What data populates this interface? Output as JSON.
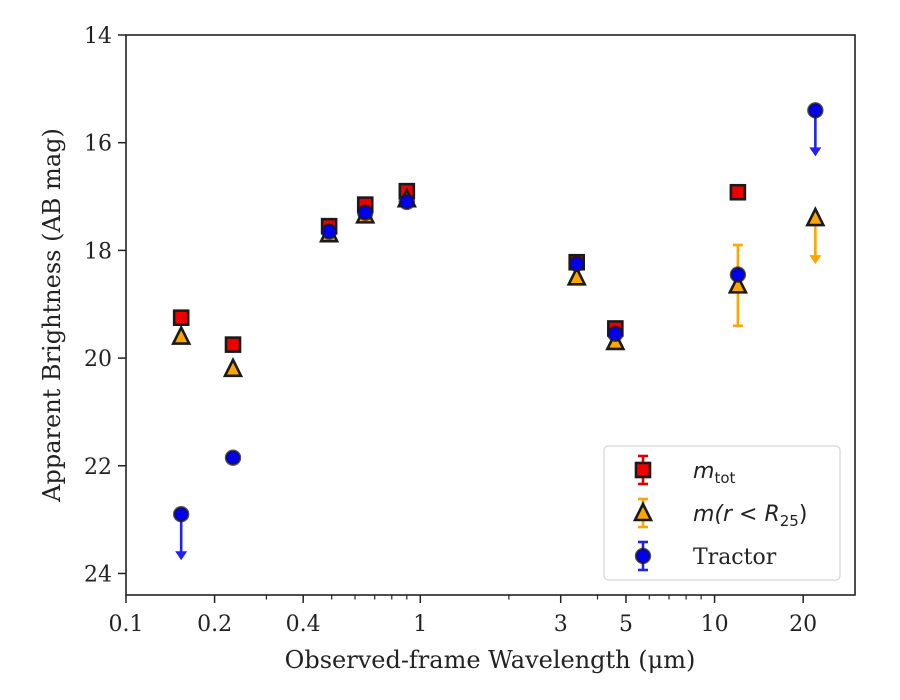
{
  "chart_data": {
    "type": "scatter",
    "xlabel": "Observed-frame Wavelength (μm)",
    "ylabel": "Apparent Brightness (AB mag)",
    "xscale": "log",
    "yinverted": true,
    "xlim": [
      0.1,
      30
    ],
    "ylim": [
      24.4,
      14
    ],
    "xticks": [
      {
        "value": 0.1,
        "label": "0.1"
      },
      {
        "value": 0.2,
        "label": "0.2"
      },
      {
        "value": 0.4,
        "label": "0.4"
      },
      {
        "value": 1,
        "label": "1"
      },
      {
        "value": 3,
        "label": "3"
      },
      {
        "value": 5,
        "label": "5"
      },
      {
        "value": 10,
        "label": "10"
      },
      {
        "value": 20,
        "label": "20"
      }
    ],
    "yticks": [
      {
        "value": 14,
        "label": "14"
      },
      {
        "value": 16,
        "label": "16"
      },
      {
        "value": 18,
        "label": "18"
      },
      {
        "value": 20,
        "label": "20"
      },
      {
        "value": 22,
        "label": "22"
      },
      {
        "value": 24,
        "label": "24"
      }
    ],
    "legend_position": "lower-right",
    "series": [
      {
        "key": "mtot",
        "name_main": "m",
        "name_sub": "tot",
        "marker": "square",
        "face": "#ee0000",
        "errcolor": "#dd0000",
        "points": [
          {
            "x": 0.154,
            "y": 19.25
          },
          {
            "x": 0.231,
            "y": 19.75
          },
          {
            "x": 0.49,
            "y": 17.55
          },
          {
            "x": 0.65,
            "y": 17.15
          },
          {
            "x": 0.9,
            "y": 16.9
          },
          {
            "x": 3.4,
            "y": 18.22
          },
          {
            "x": 4.6,
            "y": 19.45
          },
          {
            "x": 12.0,
            "y": 16.92
          }
        ]
      },
      {
        "key": "mr25",
        "name_main": "m(r < R",
        "name_sub": "25",
        "name_tail": ")",
        "marker": "triangle",
        "face": "#ffa500",
        "errcolor": "#ffa500",
        "points": [
          {
            "x": 0.154,
            "y": 19.6
          },
          {
            "x": 0.231,
            "y": 20.2
          },
          {
            "x": 0.49,
            "y": 17.7
          },
          {
            "x": 0.65,
            "y": 17.35
          },
          {
            "x": 0.9,
            "y": 17.05
          },
          {
            "x": 3.4,
            "y": 18.5
          },
          {
            "x": 4.6,
            "y": 19.7
          },
          {
            "x": 12.0,
            "y": 18.65,
            "yerr": 0.75
          },
          {
            "x": 22.0,
            "y": 17.4,
            "upper_limit": true
          }
        ]
      },
      {
        "key": "tractor",
        "name_main": "Tractor",
        "marker": "circle",
        "face": "#0000ee",
        "errcolor": "#2222ee",
        "points": [
          {
            "x": 0.154,
            "y": 22.9,
            "upper_limit": true
          },
          {
            "x": 0.231,
            "y": 21.85
          },
          {
            "x": 0.49,
            "y": 17.65
          },
          {
            "x": 0.65,
            "y": 17.3
          },
          {
            "x": 0.9,
            "y": 17.1
          },
          {
            "x": 3.4,
            "y": 18.25
          },
          {
            "x": 4.6,
            "y": 19.55
          },
          {
            "x": 12.0,
            "y": 18.45
          },
          {
            "x": 22.0,
            "y": 15.4,
            "upper_limit": true
          }
        ]
      }
    ]
  }
}
